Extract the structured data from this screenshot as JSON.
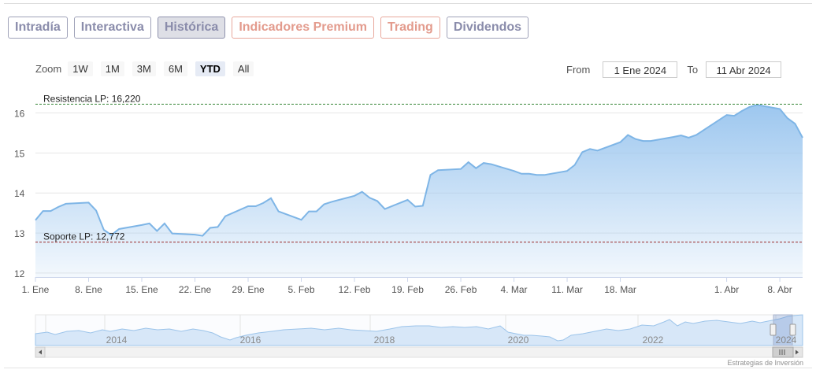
{
  "tabs": [
    {
      "label": "Intradía",
      "state": "normal"
    },
    {
      "label": "Interactiva",
      "state": "normal"
    },
    {
      "label": "Histórica",
      "state": "active"
    },
    {
      "label": "Indicadores Premium",
      "state": "premium"
    },
    {
      "label": "Trading",
      "state": "premium"
    },
    {
      "label": "Dividendos",
      "state": "normal"
    }
  ],
  "zoom": {
    "label": "Zoom",
    "buttons": [
      "1W",
      "1M",
      "3M",
      "6M",
      "YTD",
      "All"
    ],
    "selected": "YTD"
  },
  "range": {
    "from_label": "From",
    "from_value": "1 Ene 2024",
    "to_label": "To",
    "to_value": "11 Abr 2024"
  },
  "credit": "Estrategias de Inversión",
  "colors": {
    "line": "#7eb5e6",
    "fill": "#9dc7ef",
    "resistance": "#3c8a3c",
    "support": "#9b2a2a",
    "tab_accent": "#8a8cab",
    "premium": "#e39b8d"
  },
  "chart_data": {
    "type": "area",
    "y_axis": {
      "ticks": [
        12,
        13,
        14,
        15,
        16
      ],
      "range": [
        11.9,
        16.6
      ]
    },
    "x_axis": {
      "ticks": [
        "1. Ene",
        "8. Ene",
        "15. Ene",
        "22. Ene",
        "29. Ene",
        "5. Feb",
        "12. Feb",
        "19. Feb",
        "26. Feb",
        "4. Mar",
        "11. Mar",
        "18. Mar",
        "1. Abr",
        "8. Abr"
      ],
      "range": [
        "2024-01-01",
        "2024-04-11"
      ]
    },
    "series": [
      {
        "points": [
          [
            "2024-01-01",
            13.32
          ],
          [
            "2024-01-02",
            13.55
          ],
          [
            "2024-01-03",
            13.55
          ],
          [
            "2024-01-04",
            13.65
          ],
          [
            "2024-01-05",
            13.73
          ],
          [
            "2024-01-08",
            13.76
          ],
          [
            "2024-01-09",
            13.56
          ],
          [
            "2024-01-10",
            13.08
          ],
          [
            "2024-01-11",
            12.95
          ],
          [
            "2024-01-12",
            13.1
          ],
          [
            "2024-01-15",
            13.2
          ],
          [
            "2024-01-16",
            13.24
          ],
          [
            "2024-01-17",
            13.05
          ],
          [
            "2024-01-18",
            13.24
          ],
          [
            "2024-01-19",
            12.99
          ],
          [
            "2024-01-22",
            12.96
          ],
          [
            "2024-01-23",
            12.93
          ],
          [
            "2024-01-24",
            13.13
          ],
          [
            "2024-01-25",
            13.15
          ],
          [
            "2024-01-26",
            13.42
          ],
          [
            "2024-01-29",
            13.67
          ],
          [
            "2024-01-30",
            13.67
          ],
          [
            "2024-01-31",
            13.75
          ],
          [
            "2024-02-01",
            13.87
          ],
          [
            "2024-02-02",
            13.54
          ],
          [
            "2024-02-05",
            13.33
          ],
          [
            "2024-02-06",
            13.54
          ],
          [
            "2024-02-07",
            13.54
          ],
          [
            "2024-02-08",
            13.72
          ],
          [
            "2024-02-09",
            13.78
          ],
          [
            "2024-02-12",
            13.93
          ],
          [
            "2024-02-13",
            14.03
          ],
          [
            "2024-02-14",
            13.88
          ],
          [
            "2024-02-15",
            13.8
          ],
          [
            "2024-02-16",
            13.6
          ],
          [
            "2024-02-19",
            13.83
          ],
          [
            "2024-02-20",
            13.66
          ],
          [
            "2024-02-21",
            13.68
          ],
          [
            "2024-02-22",
            14.45
          ],
          [
            "2024-02-23",
            14.57
          ],
          [
            "2024-02-26",
            14.6
          ],
          [
            "2024-02-27",
            14.77
          ],
          [
            "2024-02-28",
            14.62
          ],
          [
            "2024-02-29",
            14.75
          ],
          [
            "2024-03-01",
            14.72
          ],
          [
            "2024-03-04",
            14.55
          ],
          [
            "2024-03-05",
            14.48
          ],
          [
            "2024-03-06",
            14.48
          ],
          [
            "2024-03-07",
            14.45
          ],
          [
            "2024-03-08",
            14.45
          ],
          [
            "2024-03-11",
            14.55
          ],
          [
            "2024-03-12",
            14.7
          ],
          [
            "2024-03-13",
            15.02
          ],
          [
            "2024-03-14",
            15.1
          ],
          [
            "2024-03-15",
            15.06
          ],
          [
            "2024-03-18",
            15.27
          ],
          [
            "2024-03-19",
            15.45
          ],
          [
            "2024-03-20",
            15.35
          ],
          [
            "2024-03-21",
            15.3
          ],
          [
            "2024-03-22",
            15.3
          ],
          [
            "2024-03-25",
            15.4
          ],
          [
            "2024-03-26",
            15.44
          ],
          [
            "2024-03-27",
            15.38
          ],
          [
            "2024-03-28",
            15.45
          ],
          [
            "2024-04-01",
            15.95
          ],
          [
            "2024-04-02",
            15.93
          ],
          [
            "2024-04-03",
            16.05
          ],
          [
            "2024-04-04",
            16.15
          ],
          [
            "2024-04-05",
            16.2
          ],
          [
            "2024-04-08",
            16.1
          ],
          [
            "2024-04-09",
            15.87
          ],
          [
            "2024-04-10",
            15.73
          ],
          [
            "2024-04-11",
            15.38
          ]
        ]
      }
    ],
    "annotations": [
      {
        "label": "Resistencia LP: 16,220",
        "value": 16.22,
        "style": "dashed",
        "color": "#3c8a3c"
      },
      {
        "label": "Soporte LP: 12,772",
        "value": 12.772,
        "style": "dashed",
        "color": "#9b2a2a"
      }
    ],
    "navigator": {
      "labels": [
        "2014",
        "2016",
        "2018",
        "2020",
        "2022",
        "2024"
      ]
    }
  }
}
